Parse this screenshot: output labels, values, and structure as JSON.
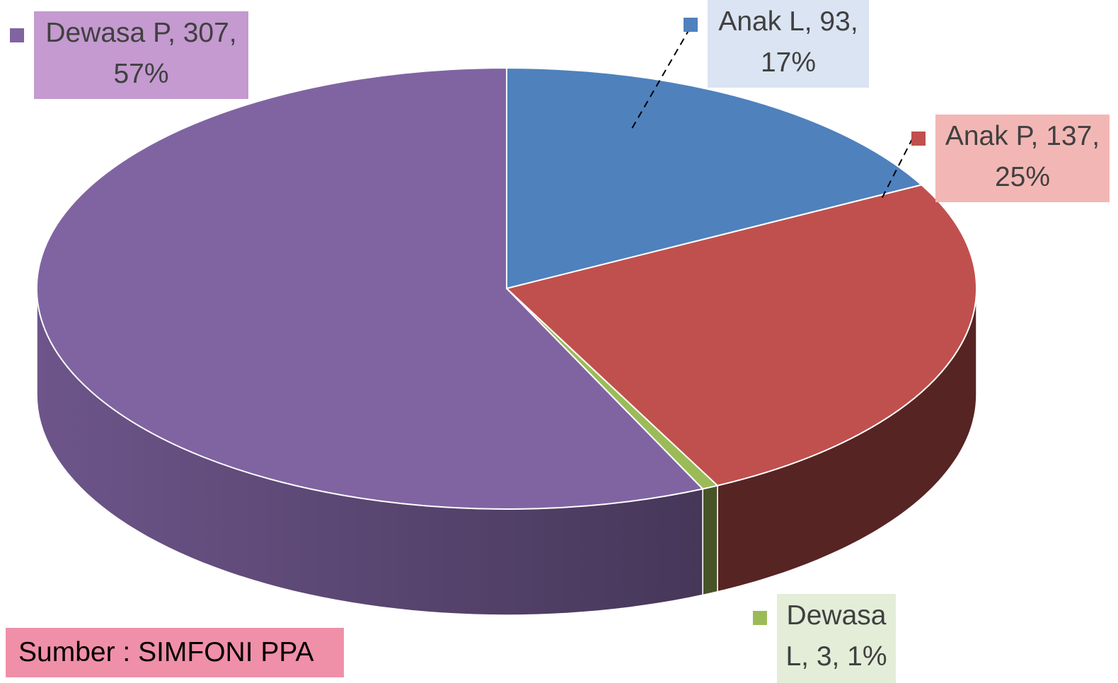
{
  "chart_data": {
    "type": "pie",
    "categories": [
      "Anak L",
      "Anak P",
      "Dewasa L",
      "Dewasa P"
    ],
    "values": [
      93,
      137,
      3,
      307
    ],
    "value_labels": [
      "Anak L, 93, 17%",
      "Anak P, 137, 25%",
      "Dewasa L, 3, 1%",
      "Dewasa P, 307, 57%"
    ],
    "colors": [
      "#4f81bd",
      "#c0504d",
      "#9bbb59",
      "#8064a2"
    ],
    "label_colors": [
      "#dae4f2",
      "#f2b7b5",
      "#e3edd8",
      "#c49ad0"
    ],
    "source": "Sumber : SIMFONI PPA"
  }
}
